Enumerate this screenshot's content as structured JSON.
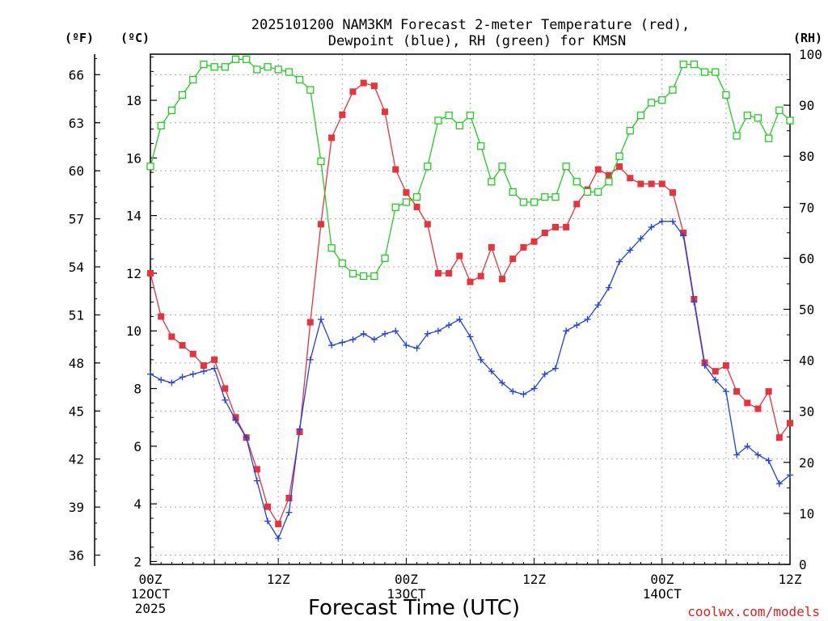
{
  "chart_data": {
    "type": "line",
    "title": [
      "2025101200 NAM3KM Forecast 2-meter Temperature (red),",
      "Dewpoint (blue), RH (green) for KMSN"
    ],
    "xlabel": "Forecast Time (UTC)",
    "credit": "coolwx.com/models",
    "units": {
      "left_f": "(ºF)",
      "left_c": "(ºC)",
      "right": "(RH)"
    },
    "x_ticks": [
      {
        "hour": 0,
        "lines": [
          "00Z",
          "12OCT",
          "2025"
        ]
      },
      {
        "hour": 12,
        "lines": [
          "12Z"
        ]
      },
      {
        "hour": 24,
        "lines": [
          "00Z",
          "13OCT"
        ]
      },
      {
        "hour": 36,
        "lines": [
          "12Z"
        ]
      },
      {
        "hour": 48,
        "lines": [
          "00Z",
          "14OCT"
        ]
      },
      {
        "hour": 60,
        "lines": [
          "12Z"
        ]
      }
    ],
    "xlim": [
      0,
      60
    ],
    "ylim_c": [
      1.9,
      19.6
    ],
    "ylim_rh": [
      0,
      100
    ],
    "y_ticks_c": [
      "2",
      "4",
      "6",
      "8",
      "10",
      "12",
      "14",
      "16",
      "18"
    ],
    "y_ticks_f": [
      "36",
      "39",
      "42",
      "45",
      "48",
      "51",
      "54",
      "57",
      "60",
      "63",
      "66"
    ],
    "y_ticks_rh": [
      "0",
      "10",
      "20",
      "30",
      "40",
      "50",
      "60",
      "70",
      "80",
      "90",
      "100"
    ],
    "series": [
      {
        "name": "Temperature",
        "unit": "C",
        "color": "#e8323c",
        "marker": "filled-square",
        "values": [
          12.0,
          10.5,
          9.8,
          9.5,
          9.2,
          8.8,
          9.0,
          8.0,
          7.0,
          6.3,
          5.2,
          3.9,
          3.3,
          4.2,
          6.5,
          10.3,
          13.7,
          16.7,
          17.5,
          18.3,
          18.6,
          18.5,
          17.6,
          15.6,
          14.8,
          14.3,
          13.7,
          12.0,
          12.0,
          12.6,
          11.7,
          11.9,
          12.9,
          11.8,
          12.5,
          12.9,
          13.1,
          13.4,
          13.6,
          13.6,
          14.4,
          14.9,
          15.6,
          15.4,
          15.7,
          15.3,
          15.1,
          15.1,
          15.1,
          14.8,
          13.4,
          11.1,
          8.9,
          8.6,
          8.8,
          7.9,
          7.5,
          7.3,
          7.9,
          6.3,
          6.8
        ]
      },
      {
        "name": "Dewpoint",
        "unit": "C",
        "color": "#2040e0",
        "marker": "plus",
        "values": [
          8.5,
          8.3,
          8.2,
          8.4,
          8.5,
          8.6,
          8.7,
          7.6,
          6.9,
          6.3,
          4.8,
          3.4,
          2.8,
          3.7,
          6.6,
          9.0,
          10.4,
          9.5,
          9.6,
          9.7,
          9.9,
          9.7,
          9.9,
          10.0,
          9.5,
          9.4,
          9.9,
          10.0,
          10.2,
          10.4,
          9.8,
          9.0,
          8.6,
          8.2,
          7.9,
          7.8,
          8.0,
          8.5,
          8.7,
          10.0,
          10.2,
          10.4,
          10.9,
          11.5,
          12.4,
          12.8,
          13.2,
          13.6,
          13.8,
          13.8,
          13.3,
          11.0,
          8.8,
          8.3,
          7.9,
          5.7,
          6.0,
          5.7,
          5.5,
          4.7,
          5.0
        ]
      },
      {
        "name": "RH",
        "unit": "%",
        "color": "#22cc22",
        "marker": "open-square",
        "values": [
          78,
          86,
          89,
          92,
          95,
          98,
          97.5,
          97.5,
          99,
          99,
          97,
          97.5,
          97,
          96.5,
          95,
          93,
          79,
          62,
          59,
          57,
          56.5,
          56.5,
          60,
          70,
          71,
          72,
          78,
          87,
          88,
          86,
          88,
          82,
          75,
          78,
          73,
          71,
          71,
          72,
          72,
          78,
          75,
          73,
          73,
          75,
          80,
          85,
          88,
          90.5,
          91,
          93,
          98,
          98,
          96.5,
          96.5,
          92,
          84,
          88,
          87.5,
          83.5,
          89,
          87
        ]
      }
    ]
  }
}
